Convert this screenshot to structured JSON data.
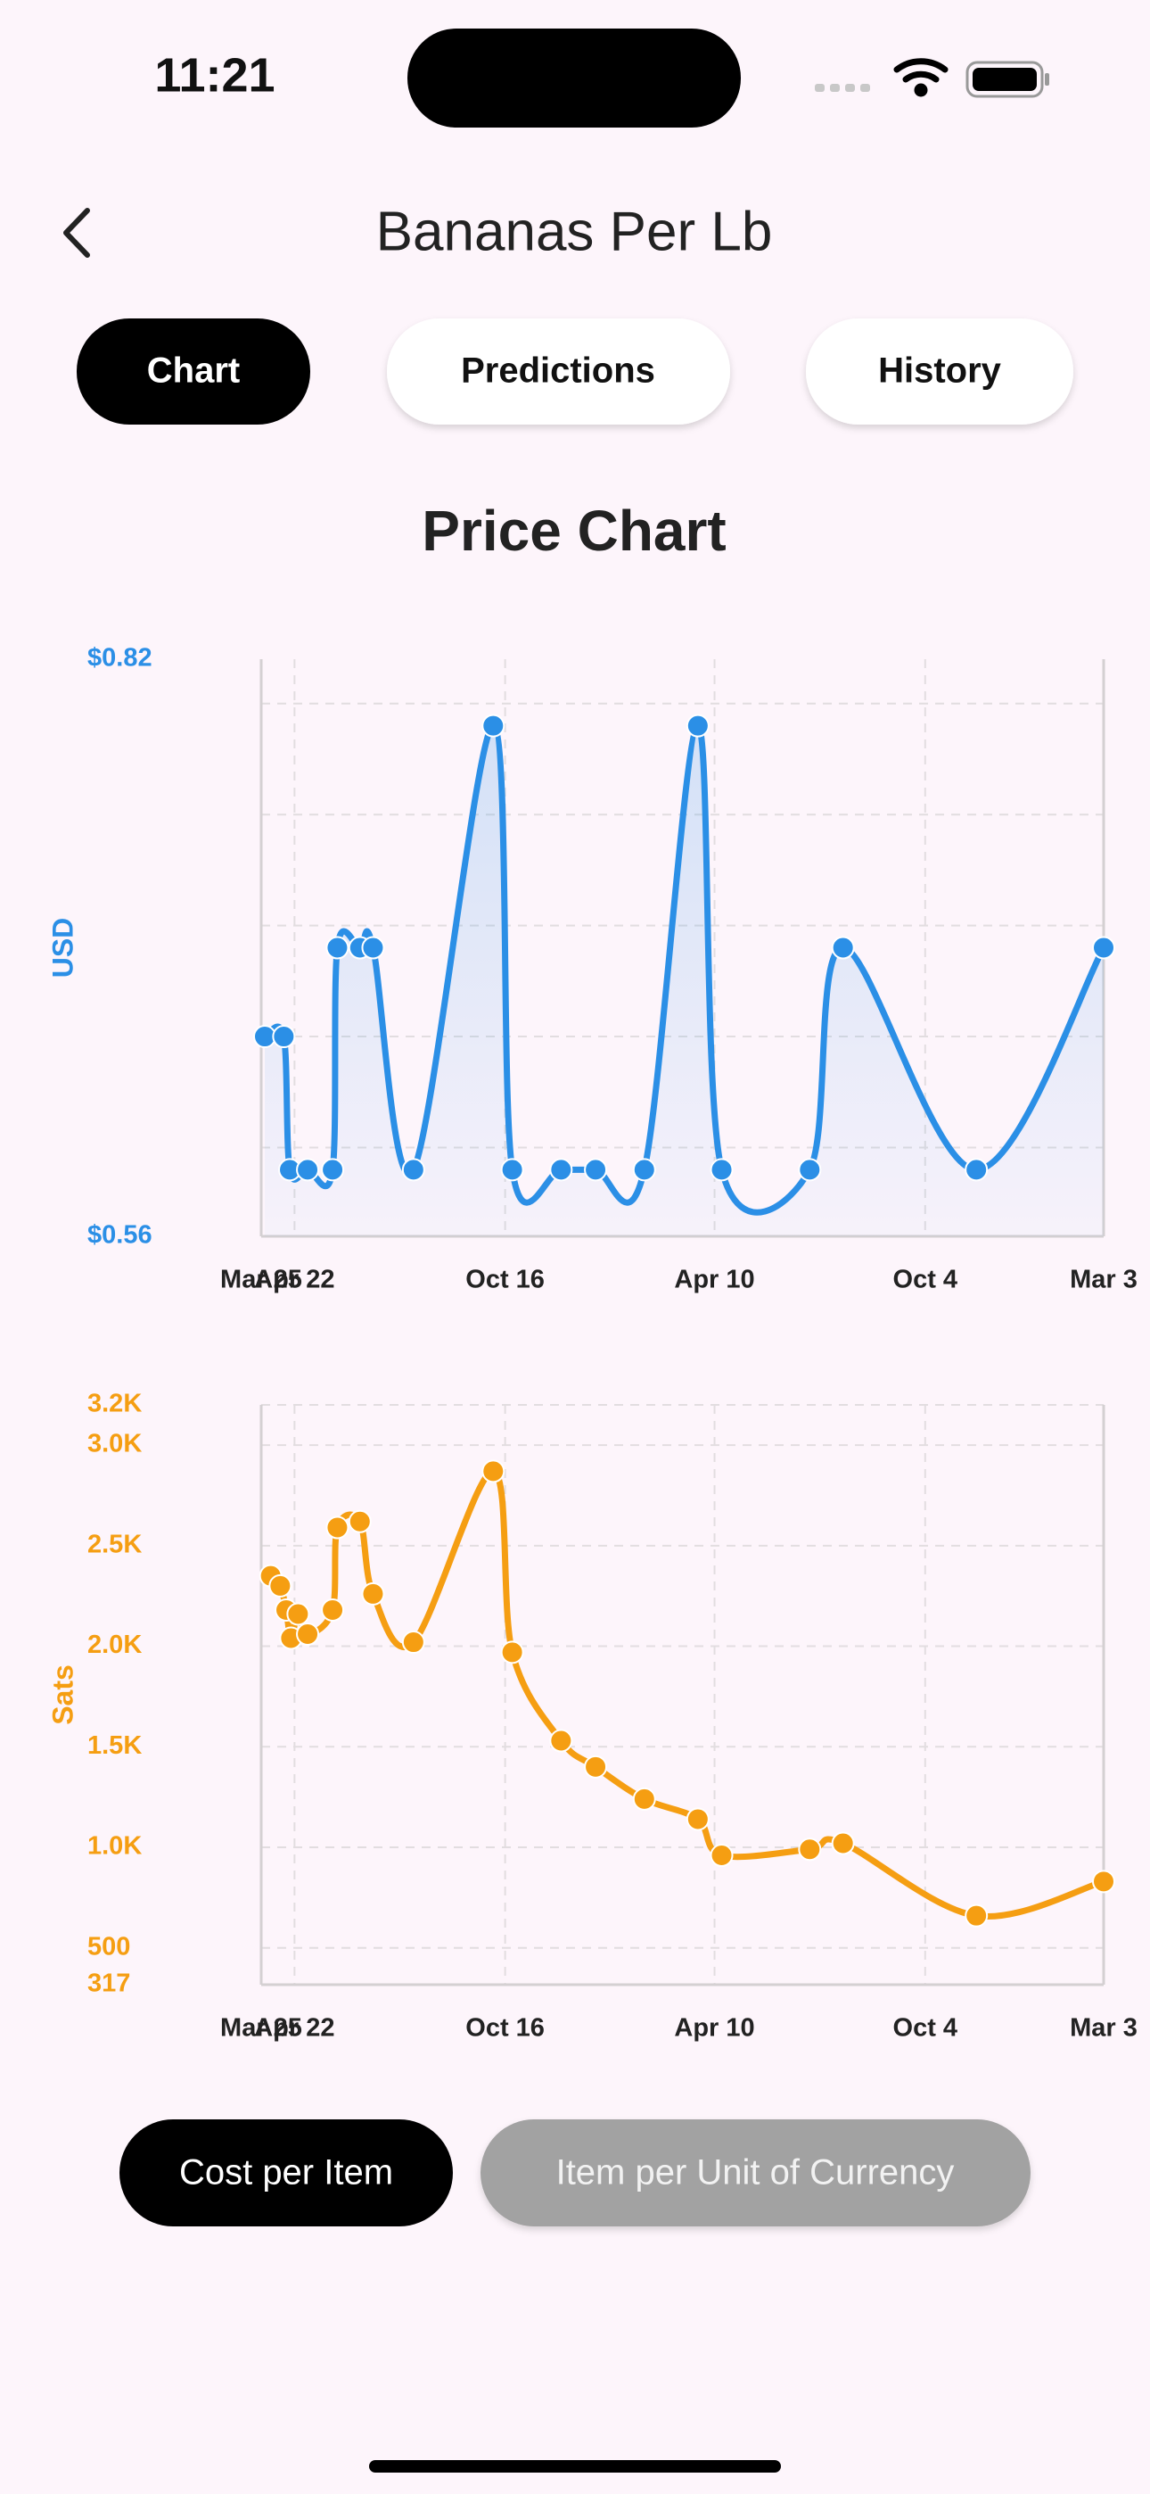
{
  "status_bar": {
    "time": "11:21"
  },
  "header": {
    "title": "Bananas Per Lb"
  },
  "tabs": [
    "Chart",
    "Predictions",
    "History"
  ],
  "section_title": "Price Chart",
  "chart_data": [
    {
      "type": "line",
      "ylabel": "USD",
      "color": "#2b8fe6",
      "area": true,
      "grid": true,
      "x": [
        3,
        19,
        24,
        39,
        60,
        64,
        83,
        94,
        128,
        195,
        211,
        252,
        281,
        322,
        367,
        387,
        461,
        489,
        601,
        708
      ],
      "values": [
        0.65,
        0.65,
        0.59,
        0.59,
        0.59,
        0.69,
        0.69,
        0.69,
        0.59,
        0.79,
        0.59,
        0.59,
        0.59,
        0.59,
        0.79,
        0.59,
        0.59,
        0.69,
        0.59,
        0.69
      ],
      "xlim": [
        0,
        708
      ],
      "xticks": [
        {
          "value": 0,
          "label": "Mar 25"
        },
        {
          "value": 28,
          "label": "Apr 22"
        },
        {
          "value": 205,
          "label": "Oct 16"
        },
        {
          "value": 381,
          "label": "Apr 10"
        },
        {
          "value": 558,
          "label": "Oct 4"
        },
        {
          "value": 708,
          "label": "Mar 3"
        }
      ],
      "ylim": [
        0.56,
        0.82
      ],
      "yticks": [
        {
          "value": 0.56,
          "label": "$0.56"
        },
        {
          "value": 0.82,
          "label": "$0.82"
        }
      ],
      "grid_lines": [
        0.6,
        0.65,
        0.7,
        0.75,
        0.8
      ]
    },
    {
      "type": "line",
      "ylabel": "Sats",
      "color": "#f59e12",
      "area": false,
      "grid": true,
      "x": [
        8,
        16,
        21,
        25,
        31,
        39,
        60,
        64,
        83,
        94,
        128,
        195,
        211,
        252,
        281,
        322,
        367,
        387,
        461,
        489,
        601,
        708
      ],
      "values": [
        2350,
        2300,
        2180,
        2040,
        2160,
        2060,
        2180,
        2590,
        2620,
        2260,
        2020,
        2870,
        1970,
        1530,
        1400,
        1240,
        1140,
        960,
        990,
        1020,
        660,
        830
      ],
      "xlim": [
        0,
        708
      ],
      "xticks": [
        {
          "value": 0,
          "label": "Mar 25"
        },
        {
          "value": 28,
          "label": "Apr 22"
        },
        {
          "value": 205,
          "label": "Oct 16"
        },
        {
          "value": 381,
          "label": "Apr 10"
        },
        {
          "value": 558,
          "label": "Oct 4"
        },
        {
          "value": 708,
          "label": "Mar 3"
        }
      ],
      "ylim": [
        317,
        3200
      ],
      "yticks": [
        317,
        500,
        {
          "value": 1000,
          "label": "1.0K"
        },
        {
          "value": 1500,
          "label": "1.5K"
        },
        {
          "value": 2000,
          "label": "2.0K"
        },
        {
          "value": 2500,
          "label": "2.5K"
        },
        {
          "value": 3000,
          "label": "3.0K"
        },
        {
          "value": 3200,
          "label": "3.2K"
        }
      ]
    }
  ],
  "toggle": [
    "Cost per Item",
    "Item per Unit of Currency"
  ]
}
